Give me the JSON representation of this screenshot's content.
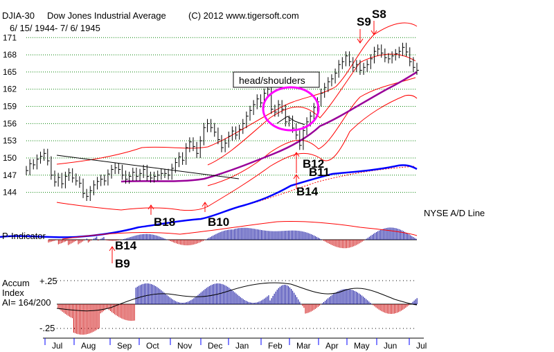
{
  "chart_data": {
    "type": "line",
    "header": {
      "symbol": "DJIA-30",
      "name": "Dow Jones Industrial Average",
      "copyright": "(C) 2012 www.tigersoft.com",
      "date_range": "6/ 15/ 1944- 7/ 6/ 1945"
    },
    "price_axis": {
      "ticks": [
        144,
        147,
        150,
        153,
        156,
        159,
        162,
        165,
        168,
        171
      ],
      "ylim": [
        142.5,
        172
      ]
    },
    "months": [
      "Jul",
      "Aug",
      "Sep",
      "Oct",
      "Nov",
      "Dec",
      "Jan",
      "Feb",
      "Mar",
      "Apr",
      "May",
      "Jun",
      "Jul"
    ],
    "price_series": [
      [
        0.0,
        147.8
      ],
      [
        0.3,
        149.0
      ],
      [
        0.6,
        148.8
      ],
      [
        0.9,
        149.8
      ],
      [
        1.2,
        150.3
      ],
      [
        1.5,
        150.8
      ],
      [
        1.8,
        149.5
      ],
      [
        2.1,
        147.0
      ],
      [
        2.4,
        145.8
      ],
      [
        2.7,
        146.6
      ],
      [
        3.0,
        145.5
      ],
      [
        3.3,
        146.8
      ],
      [
        3.6,
        147.4
      ],
      [
        3.9,
        146.5
      ],
      [
        4.2,
        146.0
      ],
      [
        4.5,
        145.6
      ],
      [
        4.8,
        143.8
      ],
      [
        5.1,
        143.3
      ],
      [
        5.4,
        144.3
      ],
      [
        5.7,
        145.3
      ],
      [
        6.0,
        145.9
      ],
      [
        6.3,
        146.3
      ],
      [
        6.6,
        146.0
      ],
      [
        6.9,
        147.2
      ],
      [
        7.2,
        148.0
      ],
      [
        7.5,
        148.3
      ],
      [
        7.8,
        148.0
      ],
      [
        8.1,
        147.0
      ],
      [
        8.4,
        146.3
      ],
      [
        8.7,
        146.8
      ],
      [
        9.0,
        147.5
      ],
      [
        9.3,
        146.8
      ],
      [
        9.6,
        147.3
      ],
      [
        9.9,
        148.0
      ],
      [
        10.2,
        146.8
      ],
      [
        10.5,
        146.5
      ],
      [
        10.8,
        146.8
      ],
      [
        11.1,
        147.0
      ],
      [
        11.4,
        147.3
      ],
      [
        11.7,
        147.3
      ],
      [
        12.0,
        147.0
      ],
      [
        12.3,
        148.2
      ],
      [
        12.6,
        149.2
      ],
      [
        12.9,
        150.2
      ],
      [
        13.2,
        149.6
      ],
      [
        13.5,
        151.8
      ],
      [
        13.8,
        152.8
      ],
      [
        14.1,
        152.0
      ],
      [
        14.4,
        150.8
      ],
      [
        14.7,
        153.0
      ],
      [
        15.0,
        155.3
      ],
      [
        15.3,
        156.0
      ],
      [
        15.6,
        155.3
      ],
      [
        15.9,
        154.5
      ],
      [
        16.2,
        153.2
      ],
      [
        16.5,
        151.8
      ],
      [
        16.8,
        152.6
      ],
      [
        17.1,
        153.8
      ],
      [
        17.4,
        154.7
      ],
      [
        17.7,
        154.0
      ],
      [
        18.0,
        155.0
      ],
      [
        18.3,
        156.0
      ],
      [
        18.6,
        157.3
      ],
      [
        18.9,
        158.3
      ],
      [
        19.2,
        159.3
      ],
      [
        19.5,
        160.3
      ],
      [
        19.8,
        159.6
      ],
      [
        20.1,
        161.3
      ],
      [
        20.4,
        162.0
      ],
      [
        20.7,
        158.5
      ],
      [
        21.0,
        158.0
      ],
      [
        21.3,
        159.3
      ],
      [
        21.6,
        158.5
      ],
      [
        21.9,
        156.3
      ],
      [
        22.2,
        156.6
      ],
      [
        22.5,
        155.2
      ],
      [
        22.8,
        154.0
      ],
      [
        23.1,
        152.2
      ],
      [
        23.4,
        154.8
      ],
      [
        23.7,
        156.3
      ],
      [
        24.0,
        157.3
      ],
      [
        24.3,
        158.8
      ],
      [
        24.6,
        159.8
      ],
      [
        24.9,
        161.3
      ],
      [
        25.2,
        162.3
      ],
      [
        25.5,
        163.3
      ],
      [
        25.8,
        163.8
      ],
      [
        26.1,
        164.8
      ],
      [
        26.4,
        166.3
      ],
      [
        26.7,
        166.8
      ],
      [
        27.0,
        167.8
      ],
      [
        27.3,
        166.8
      ],
      [
        27.6,
        165.8
      ],
      [
        27.9,
        166.3
      ],
      [
        28.2,
        165.3
      ],
      [
        28.5,
        165.8
      ],
      [
        28.8,
        166.3
      ],
      [
        29.1,
        167.3
      ],
      [
        29.4,
        168.6
      ],
      [
        29.7,
        169.0
      ],
      [
        30.0,
        168.3
      ],
      [
        30.3,
        167.5
      ],
      [
        30.6,
        167.3
      ],
      [
        30.9,
        167.8
      ],
      [
        31.2,
        168.2
      ],
      [
        31.5,
        168.6
      ],
      [
        31.8,
        169.3
      ],
      [
        32.1,
        168.5
      ],
      [
        32.4,
        166.8
      ],
      [
        32.7,
        165.8
      ],
      [
        33.0,
        165.3
      ]
    ],
    "annotations": {
      "box_label": "head/shoulders",
      "signals": [
        "S9",
        "S8",
        "B12",
        "B11",
        "B14",
        "B18",
        "B10",
        "B14",
        "B9"
      ]
    },
    "panels": {
      "ad_line_label": "NYSE A/D Line",
      "pindicator_label": "P-Indicator",
      "accum_label_1": "Accum",
      "accum_label_2": "Index",
      "accum_label_3": "AI= 164/200",
      "accum_ticks": [
        "+.25",
        "-.25"
      ]
    }
  }
}
